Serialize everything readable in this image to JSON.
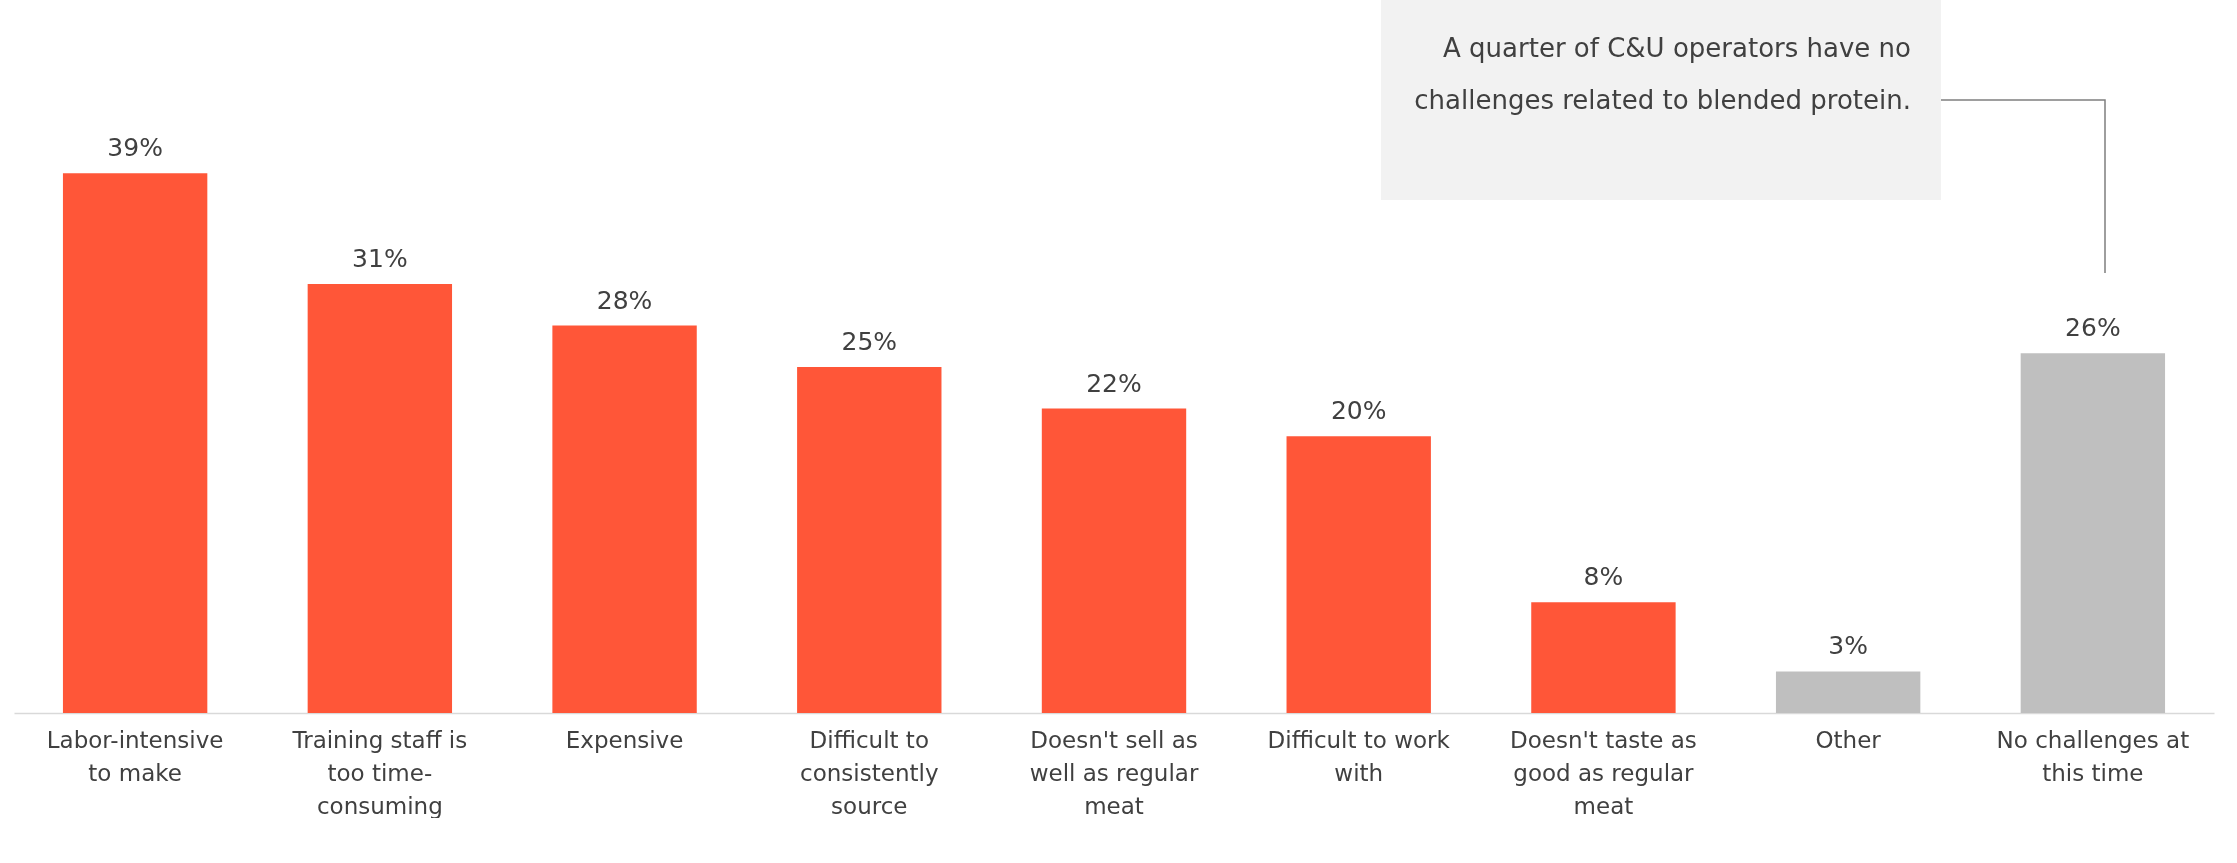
{
  "chart_data": {
    "type": "bar",
    "categories": [
      "Labor-intensive to make",
      "Training staff is too time-consuming",
      "Expensive",
      "Difficult to consistently source",
      "Doesn't sell as well as regular meat",
      "Difficult to work with",
      "Doesn't taste as good as regular meat",
      "Other",
      "No challenges at this time"
    ],
    "values": [
      39,
      31,
      28,
      25,
      22,
      20,
      8,
      3,
      26
    ],
    "colors": [
      "#ff5638",
      "#ff5638",
      "#ff5638",
      "#ff5638",
      "#ff5638",
      "#ff5638",
      "#ff5638",
      "#bfbfbf",
      "#bfbfbf"
    ],
    "value_labels": [
      "39%",
      "31%",
      "28%",
      "25%",
      "22%",
      "20%",
      "8%",
      "3%",
      "26%"
    ],
    "annotations": [
      "A quarter of C&U operators have no challenges related to blended protein."
    ]
  }
}
